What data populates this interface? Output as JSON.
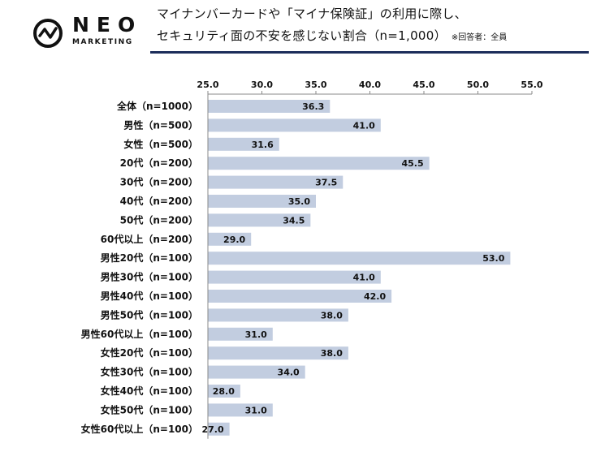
{
  "header": {
    "logo_name": "NEO",
    "logo_sub": "MARKETING",
    "title_line1": "マイナンバーカードや「マイナ保険証」の利用に際し、",
    "title_line2": "セキュリティ面の不安を感じない割合（n=1,000）",
    "note": "※回答者：全員"
  },
  "colors": {
    "bar": "#c2cde0",
    "rule": "#1c2d5a",
    "axis": "#888888"
  },
  "chart_data": {
    "type": "bar",
    "orientation": "horizontal",
    "title": "マイナンバーカードや「マイナ保険証」の利用に際し、セキュリティ面の不安を感じない割合（n=1,000）",
    "xlim": [
      25.0,
      55.0
    ],
    "xticks": [
      "25.0",
      "30.0",
      "35.0",
      "40.0",
      "45.0",
      "50.0",
      "55.0"
    ],
    "xtick_values": [
      25,
      30,
      35,
      40,
      45,
      50,
      55
    ],
    "categories": [
      "全体（n=1000）",
      "男性（n=500）",
      "女性（n=500）",
      "20代（n=200）",
      "30代（n=200）",
      "40代（n=200）",
      "50代（n=200）",
      "60代以上（n=200）",
      "男性20代（n=100）",
      "男性30代（n=100）",
      "男性40代（n=100）",
      "男性50代（n=100）",
      "男性60代以上（n=100）",
      "女性20代（n=100）",
      "女性30代（n=100）",
      "女性40代（n=100）",
      "女性50代（n=100）",
      "女性60代以上（n=100）"
    ],
    "values": [
      36.3,
      41.0,
      31.6,
      45.5,
      37.5,
      35.0,
      34.5,
      29.0,
      53.0,
      41.0,
      42.0,
      38.0,
      31.0,
      38.0,
      34.0,
      28.0,
      31.0,
      27.0
    ],
    "value_labels": [
      "36.3",
      "41.0",
      "31.6",
      "45.5",
      "37.5",
      "35.0",
      "34.5",
      "29.0",
      "53.0",
      "41.0",
      "42.0",
      "38.0",
      "31.0",
      "38.0",
      "34.0",
      "28.0",
      "31.0",
      "27.0"
    ]
  }
}
